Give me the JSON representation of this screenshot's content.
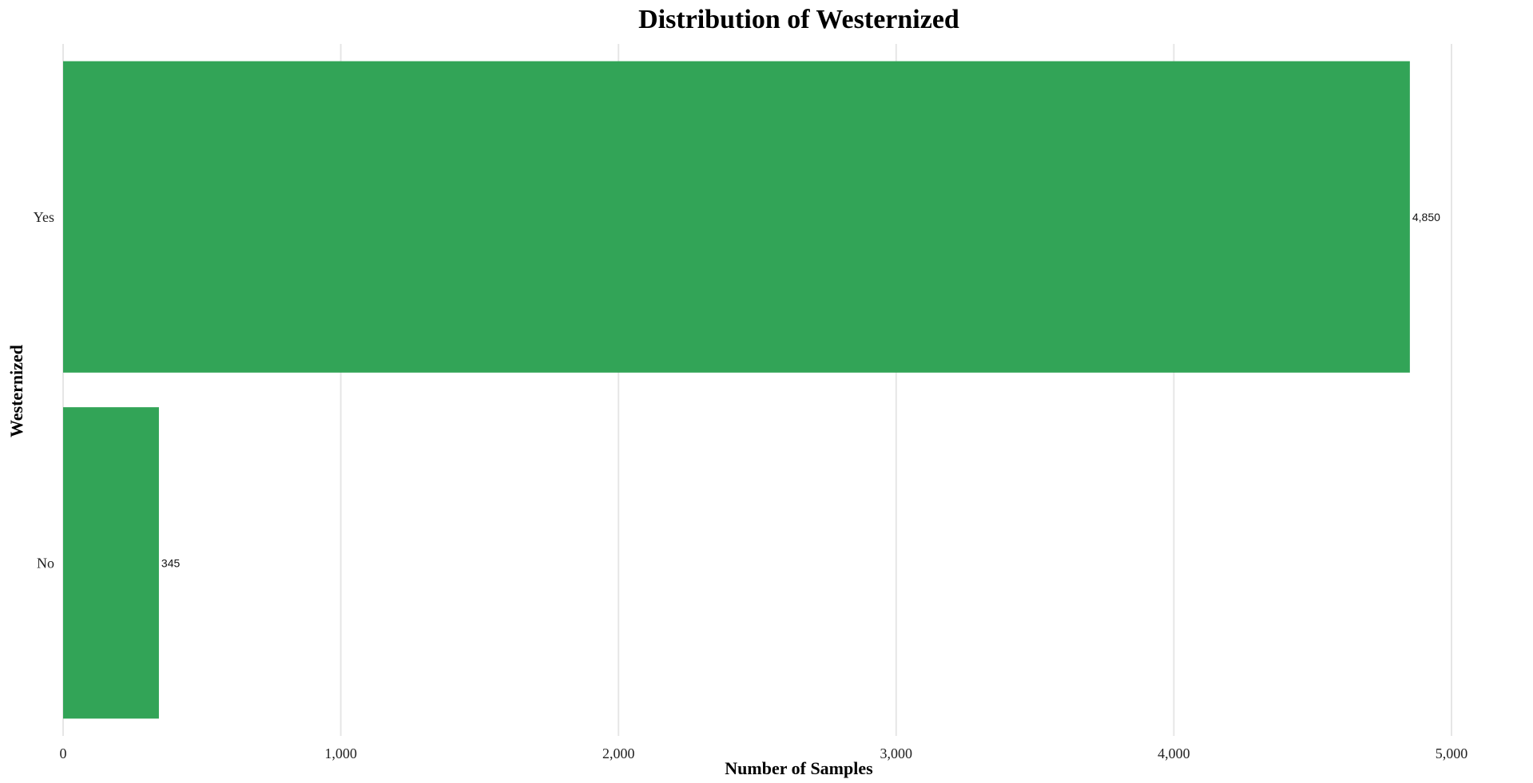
{
  "chart_data": {
    "type": "bar",
    "orientation": "horizontal",
    "title": "Distribution of Westernized",
    "xlabel": "Number of Samples",
    "ylabel": "Westernized",
    "categories": [
      "Yes",
      "No"
    ],
    "values": [
      4850,
      345
    ],
    "value_labels": [
      "4,850",
      "345"
    ],
    "xlim": [
      0,
      5000
    ],
    "xticks": [
      0,
      1000,
      2000,
      3000,
      4000,
      5000
    ],
    "xtick_labels": [
      "0",
      "1,000",
      "2,000",
      "3,000",
      "4,000",
      "5,000"
    ],
    "grid": "vertical",
    "bar_color": "#32a457"
  }
}
